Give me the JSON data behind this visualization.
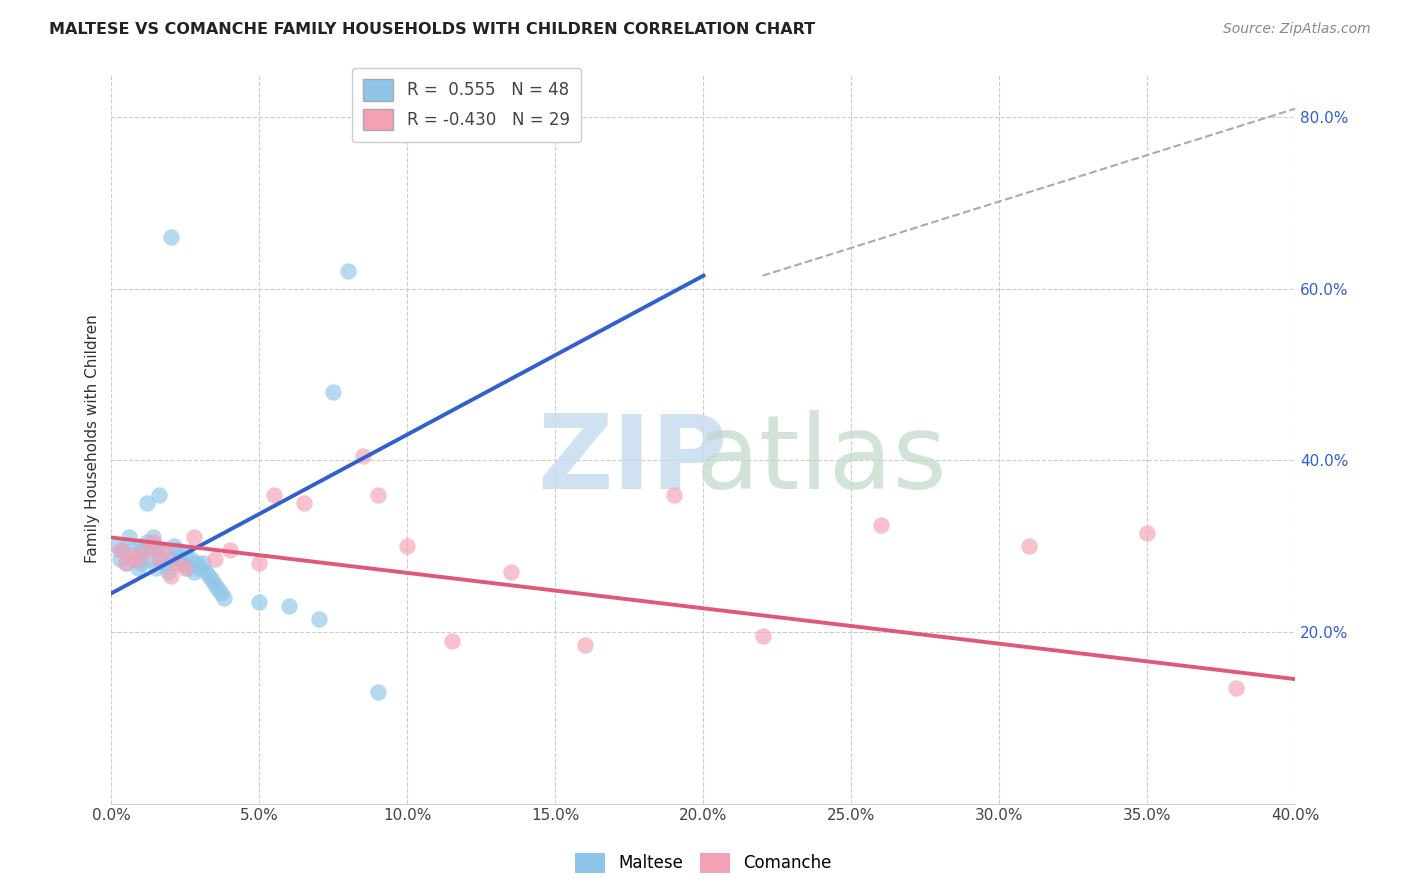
{
  "title": "MALTESE VS COMANCHE FAMILY HOUSEHOLDS WITH CHILDREN CORRELATION CHART",
  "source": "Source: ZipAtlas.com",
  "ylabel": "Family Households with Children",
  "xlim": [
    0.0,
    0.4
  ],
  "ylim": [
    0.0,
    0.85
  ],
  "xtick_positions": [
    0.0,
    0.05,
    0.1,
    0.15,
    0.2,
    0.25,
    0.3,
    0.35,
    0.4
  ],
  "xtick_labels": [
    "0.0%",
    "5.0%",
    "10.0%",
    "15.0%",
    "20.0%",
    "25.0%",
    "30.0%",
    "35.0%",
    "40.0%"
  ],
  "yticks_right": [
    0.2,
    0.4,
    0.6,
    0.8
  ],
  "ytick_labels_right": [
    "20.0%",
    "40.0%",
    "60.0%",
    "80.0%"
  ],
  "blue_R": "0.555",
  "blue_N": "48",
  "pink_R": "-0.430",
  "pink_N": "29",
  "blue_color": "#8EC5E8",
  "pink_color": "#F4A0B5",
  "blue_line_color": "#3060D0",
  "pink_line_color": "#E05878",
  "dashed_line_color": "#AAAAAA",
  "blue_points_x": [
    0.002,
    0.003,
    0.004,
    0.005,
    0.006,
    0.007,
    0.008,
    0.009,
    0.01,
    0.01,
    0.011,
    0.012,
    0.013,
    0.014,
    0.015,
    0.015,
    0.016,
    0.017,
    0.018,
    0.019,
    0.02,
    0.021,
    0.022,
    0.023,
    0.024,
    0.025,
    0.026,
    0.027,
    0.028,
    0.029,
    0.03,
    0.031,
    0.032,
    0.033,
    0.034,
    0.035,
    0.036,
    0.037,
    0.038,
    0.05,
    0.06,
    0.07,
    0.075,
    0.08,
    0.09,
    0.012,
    0.016,
    0.02
  ],
  "blue_points_y": [
    0.3,
    0.285,
    0.295,
    0.28,
    0.31,
    0.295,
    0.285,
    0.275,
    0.3,
    0.28,
    0.295,
    0.305,
    0.285,
    0.31,
    0.3,
    0.275,
    0.285,
    0.295,
    0.28,
    0.27,
    0.285,
    0.3,
    0.295,
    0.285,
    0.28,
    0.29,
    0.275,
    0.285,
    0.27,
    0.28,
    0.275,
    0.28,
    0.27,
    0.265,
    0.26,
    0.255,
    0.25,
    0.245,
    0.24,
    0.235,
    0.23,
    0.215,
    0.48,
    0.62,
    0.13,
    0.35,
    0.36,
    0.66
  ],
  "pink_points_x": [
    0.003,
    0.005,
    0.007,
    0.009,
    0.012,
    0.014,
    0.016,
    0.018,
    0.02,
    0.022,
    0.025,
    0.028,
    0.035,
    0.04,
    0.05,
    0.055,
    0.065,
    0.09,
    0.1,
    0.115,
    0.135,
    0.16,
    0.19,
    0.22,
    0.26,
    0.31,
    0.35,
    0.38,
    0.085
  ],
  "pink_points_y": [
    0.295,
    0.28,
    0.29,
    0.285,
    0.295,
    0.305,
    0.285,
    0.295,
    0.265,
    0.28,
    0.275,
    0.31,
    0.285,
    0.295,
    0.28,
    0.36,
    0.35,
    0.36,
    0.3,
    0.19,
    0.27,
    0.185,
    0.36,
    0.195,
    0.325,
    0.3,
    0.315,
    0.135,
    0.405
  ],
  "blue_line_x": [
    0.0,
    0.2
  ],
  "blue_line_y": [
    0.245,
    0.615
  ],
  "pink_line_x": [
    0.0,
    0.4
  ],
  "pink_line_y": [
    0.31,
    0.145
  ],
  "dashed_line_x": [
    0.22,
    0.405
  ],
  "dashed_line_y": [
    0.615,
    0.815
  ]
}
